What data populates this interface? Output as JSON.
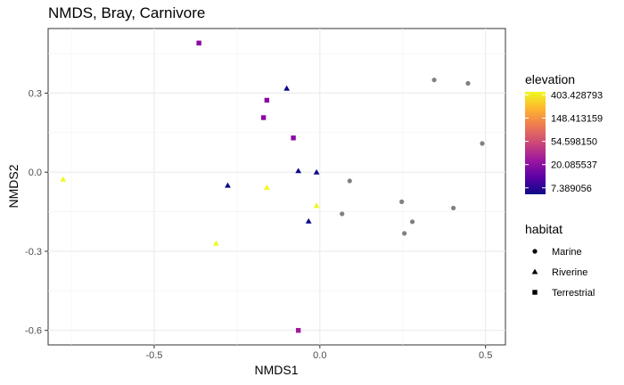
{
  "chart_data": {
    "type": "scatter",
    "title": "NMDS, Bray, Carnivore",
    "xlabel": "NMDS1",
    "ylabel": "NMDS2",
    "xlim": [
      -0.82,
      0.56
    ],
    "ylim": [
      -0.655,
      0.545
    ],
    "x_ticks": [
      -0.5,
      0.0,
      0.5
    ],
    "x_tick_labels": [
      "-0.5",
      "0.0",
      "0.5"
    ],
    "y_ticks": [
      0.3,
      0.0,
      -0.3,
      -0.6
    ],
    "y_tick_labels": [
      "0.3",
      "0.0",
      "-0.3",
      "-0.6"
    ],
    "grid": true,
    "color_legend": {
      "title": "elevation",
      "scale": "log",
      "labels": [
        "403.428793",
        "148.413159",
        "54.598150",
        "20.085537",
        "7.389056"
      ],
      "values": [
        403.428793,
        148.413159,
        54.59815,
        20.085537,
        7.389056
      ],
      "range": [
        5.6,
        460
      ],
      "palette": [
        "#0d0887",
        "#5c01a6",
        "#9c179e",
        "#cc4778",
        "#ed7953",
        "#fdb42f",
        "#f0f921"
      ],
      "na_color": "#808080"
    },
    "shape_legend": {
      "title": "habitat",
      "entries": [
        {
          "label": "Marine",
          "shape": "circle"
        },
        {
          "label": "Riverine",
          "shape": "triangle"
        },
        {
          "label": "Terrestrial",
          "shape": "square"
        }
      ]
    },
    "points": [
      {
        "x": 0.345,
        "y": 0.35,
        "habitat": "Marine",
        "color": "#808080"
      },
      {
        "x": 0.447,
        "y": 0.337,
        "habitat": "Marine",
        "color": "#808080"
      },
      {
        "x": 0.49,
        "y": 0.109,
        "habitat": "Marine",
        "color": "#808080"
      },
      {
        "x": 0.09,
        "y": -0.033,
        "habitat": "Marine",
        "color": "#808080"
      },
      {
        "x": 0.247,
        "y": -0.112,
        "habitat": "Marine",
        "color": "#808080"
      },
      {
        "x": 0.403,
        "y": -0.136,
        "habitat": "Marine",
        "color": "#808080"
      },
      {
        "x": 0.067,
        "y": -0.158,
        "habitat": "Marine",
        "color": "#808080"
      },
      {
        "x": 0.279,
        "y": -0.188,
        "habitat": "Marine",
        "color": "#808080"
      },
      {
        "x": 0.255,
        "y": -0.232,
        "habitat": "Marine",
        "color": "#808080"
      },
      {
        "x": -0.1,
        "y": 0.318,
        "habitat": "Riverine",
        "color": "#0d0887"
      },
      {
        "x": -0.065,
        "y": 0.005,
        "habitat": "Riverine",
        "color": "#0d0887"
      },
      {
        "x": -0.01,
        "y": 0.0,
        "habitat": "Riverine",
        "color": "#0d0887"
      },
      {
        "x": -0.278,
        "y": -0.05,
        "habitat": "Riverine",
        "color": "#0d0887"
      },
      {
        "x": -0.034,
        "y": -0.186,
        "habitat": "Riverine",
        "color": "#0d0887"
      },
      {
        "x": -0.775,
        "y": -0.027,
        "habitat": "Riverine",
        "color": "#f0f921"
      },
      {
        "x": -0.16,
        "y": -0.058,
        "habitat": "Riverine",
        "color": "#f0f921"
      },
      {
        "x": -0.01,
        "y": -0.127,
        "habitat": "Riverine",
        "color": "#f0f921"
      },
      {
        "x": -0.313,
        "y": -0.27,
        "habitat": "Riverine",
        "color": "#f0f921"
      },
      {
        "x": -0.365,
        "y": 0.49,
        "habitat": "Terrestrial",
        "color": "#8b0aa5"
      },
      {
        "x": -0.16,
        "y": 0.273,
        "habitat": "Terrestrial",
        "color": "#8b0aa5"
      },
      {
        "x": -0.17,
        "y": 0.207,
        "habitat": "Terrestrial",
        "color": "#8b0aa5"
      },
      {
        "x": -0.08,
        "y": 0.13,
        "habitat": "Terrestrial",
        "color": "#8b0aa5"
      },
      {
        "x": -0.065,
        "y": -0.6,
        "habitat": "Terrestrial",
        "color": "#a01a9c"
      }
    ]
  }
}
